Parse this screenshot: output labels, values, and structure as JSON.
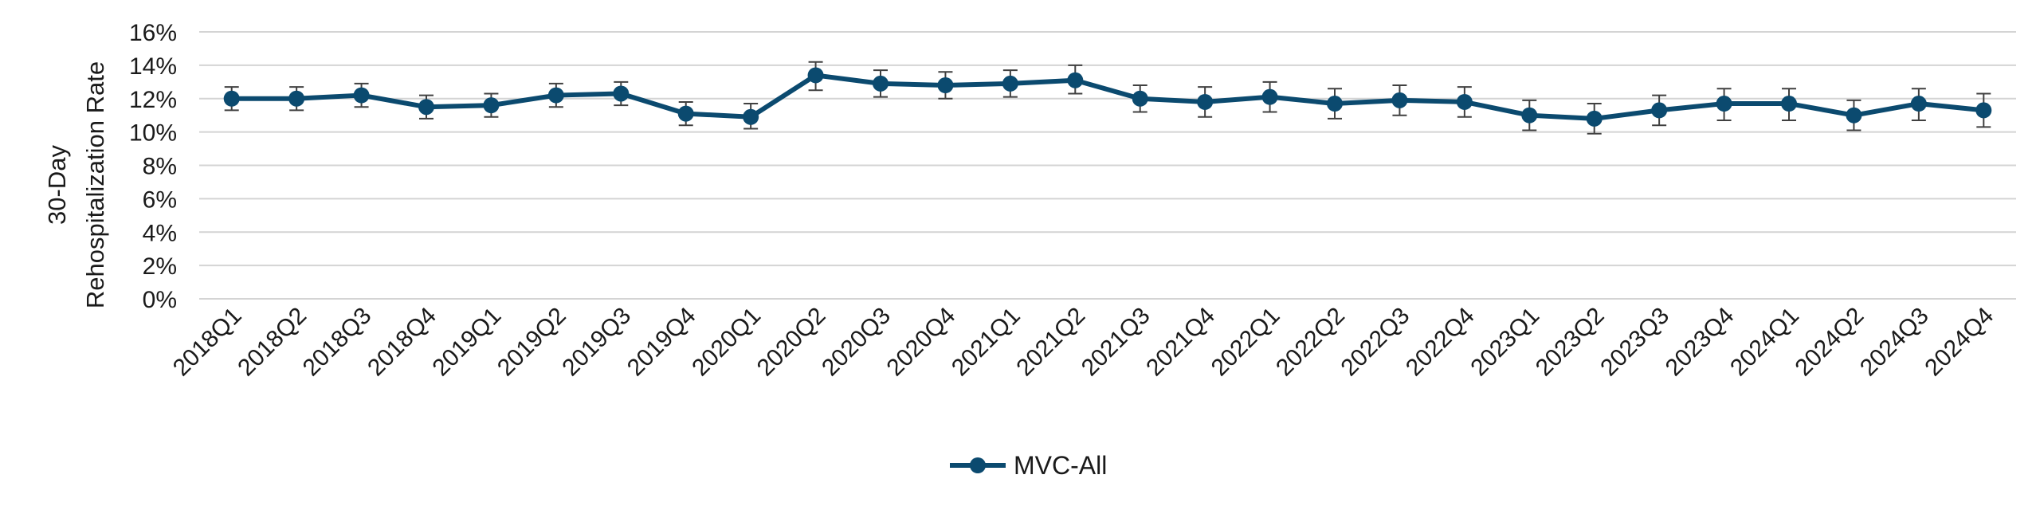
{
  "colors": {
    "series": "#0b4a6f",
    "grid": "#d4d4d4",
    "errorbar": "#404040"
  },
  "chart_data": {
    "type": "line",
    "title": "",
    "xlabel": "",
    "ylabel_lines": [
      "30-Day",
      "Rehospitalization Rate"
    ],
    "ylim": [
      0,
      16
    ],
    "yticks": [
      0,
      2,
      4,
      6,
      8,
      10,
      12,
      14,
      16
    ],
    "ytick_labels": [
      "0%",
      "2%",
      "4%",
      "6%",
      "8%",
      "10%",
      "12%",
      "14%",
      "16%"
    ],
    "grid": true,
    "legend": "bottom-center",
    "categories": [
      "2018Q1",
      "2018Q2",
      "2018Q3",
      "2018Q4",
      "2019Q1",
      "2019Q2",
      "2019Q3",
      "2019Q4",
      "2020Q1",
      "2020Q2",
      "2020Q3",
      "2020Q4",
      "2021Q1",
      "2021Q2",
      "2021Q3",
      "2021Q4",
      "2022Q1",
      "2022Q2",
      "2022Q3",
      "2022Q4",
      "2023Q1",
      "2023Q2",
      "2023Q3",
      "2023Q4",
      "2024Q1",
      "2024Q2",
      "2024Q3",
      "2024Q4"
    ],
    "series": [
      {
        "name": "MVC-All",
        "values": [
          12.0,
          12.0,
          12.2,
          11.5,
          11.6,
          12.2,
          12.3,
          11.1,
          10.9,
          13.4,
          12.9,
          12.8,
          12.9,
          13.1,
          12.0,
          11.8,
          12.1,
          11.7,
          11.9,
          11.8,
          11.0,
          10.8,
          11.3,
          11.7,
          11.7,
          11.0,
          11.7,
          11.3
        ],
        "error_low": [
          11.3,
          11.3,
          11.5,
          10.8,
          10.9,
          11.5,
          11.6,
          10.4,
          10.2,
          12.5,
          12.1,
          12.0,
          12.1,
          12.3,
          11.2,
          10.9,
          11.2,
          10.8,
          11.0,
          10.9,
          10.1,
          9.9,
          10.4,
          10.7,
          10.7,
          10.1,
          10.7,
          10.3
        ],
        "error_high": [
          12.7,
          12.7,
          12.9,
          12.2,
          12.3,
          12.9,
          13.0,
          11.8,
          11.7,
          14.2,
          13.7,
          13.6,
          13.7,
          14.0,
          12.8,
          12.7,
          13.0,
          12.6,
          12.8,
          12.7,
          11.9,
          11.7,
          12.2,
          12.6,
          12.6,
          11.9,
          12.6,
          12.3
        ]
      }
    ]
  }
}
